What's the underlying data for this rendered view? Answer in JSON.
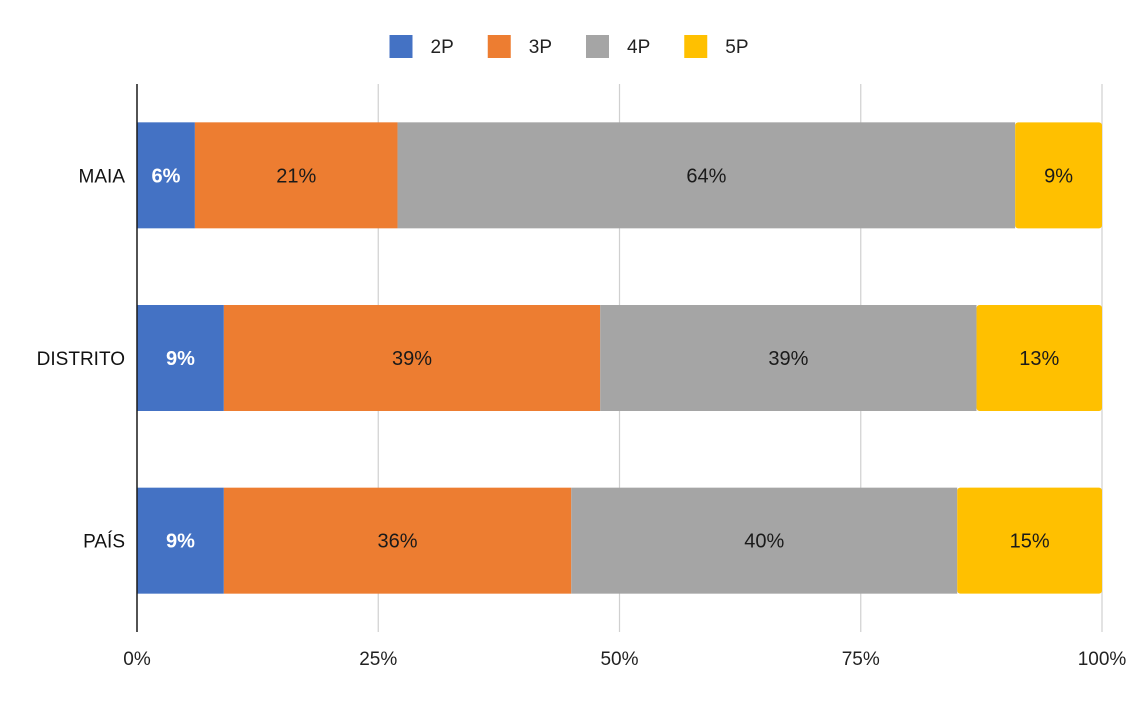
{
  "chart_data": {
    "type": "bar",
    "orientation": "horizontal",
    "stacked": true,
    "categories": [
      "MAIA",
      "DISTRITO",
      "PAÍS"
    ],
    "series": [
      {
        "name": "2P",
        "color": "#4472C4",
        "values": [
          6,
          9,
          9
        ],
        "labels": [
          "6%",
          "9%",
          "9%"
        ]
      },
      {
        "name": "3P",
        "color": "#ED7D31",
        "values": [
          21,
          39,
          36
        ],
        "labels": [
          "21%",
          "39%",
          "36%"
        ]
      },
      {
        "name": "4P",
        "color": "#A5A5A5",
        "values": [
          64,
          39,
          40
        ],
        "labels": [
          "64%",
          "39%",
          "40%"
        ]
      },
      {
        "name": "5P",
        "color": "#FFC000",
        "values": [
          9,
          13,
          15
        ],
        "labels": [
          "9%",
          "13%",
          "15%"
        ]
      }
    ],
    "xlim": [
      0,
      100
    ],
    "x_ticks": [
      0,
      25,
      50,
      75,
      100
    ],
    "x_tick_labels": [
      "0%",
      "25%",
      "50%",
      "75%",
      "100%"
    ],
    "grid": "vertical",
    "legend_position": "top",
    "title": "",
    "xlabel": "",
    "ylabel": ""
  }
}
